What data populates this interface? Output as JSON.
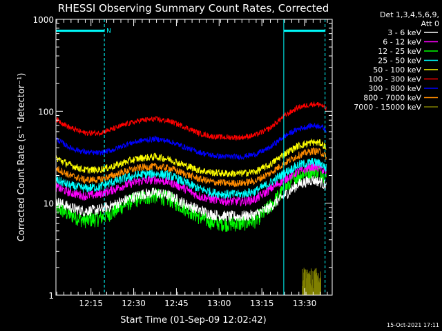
{
  "chart_data": {
    "type": "line",
    "title": "RHESSI Observing Summary Count Rates, Corrected",
    "xlabel": "Start Time (01-Sep-09 12:02:42)",
    "ylabel": "Corrected Count Rate (s⁻¹ detector⁻¹)",
    "y_scale": "log",
    "ylim": [
      1,
      1000
    ],
    "xlim_minutes": [
      0,
      97
    ],
    "x_ticks": [
      {
        "label": "12:15",
        "minute": 12.3
      },
      {
        "label": "12:30",
        "minute": 27.3
      },
      {
        "label": "12:45",
        "minute": 42.3
      },
      {
        "label": "13:00",
        "minute": 57.3
      },
      {
        "label": "13:15",
        "minute": 72.3
      },
      {
        "label": "13:30",
        "minute": 87.3
      }
    ],
    "y_ticks": [
      {
        "label": "1",
        "value": 1
      },
      {
        "label": "10",
        "value": 10
      },
      {
        "label": "100",
        "value": 100
      },
      {
        "label": "1000",
        "value": 1000
      }
    ],
    "legend_header": [
      "Det 1,3,4,5,6,9,",
      "Att 0"
    ],
    "legend_placement": "right",
    "x_sample_minutes": [
      0,
      5,
      10,
      15,
      20,
      25,
      30,
      35,
      40,
      45,
      50,
      55,
      60,
      65,
      70,
      75,
      80,
      85,
      90,
      93,
      95
    ],
    "series": [
      {
        "name": "3 - 6 keV",
        "color": "#ffffff",
        "noise": 0.06,
        "values": [
          10.5,
          9,
          8.2,
          8.5,
          9.5,
          11,
          12.5,
          13,
          12,
          10,
          8.5,
          7.5,
          7.2,
          7.2,
          7.5,
          9,
          12,
          16,
          18,
          17,
          15
        ]
      },
      {
        "name": "6 - 12 keV",
        "color": "#ff00ff",
        "noise": 0.05,
        "values": [
          15,
          13,
          12,
          12.5,
          14,
          16,
          17.5,
          18,
          17,
          14.5,
          12,
          11,
          10.5,
          10.5,
          11,
          14,
          18,
          22,
          25,
          24,
          21
        ]
      },
      {
        "name": "12 - 25 keV",
        "color": "#00ff00",
        "noise": 0.09,
        "values": [
          9,
          7.5,
          6.5,
          6.8,
          8,
          10,
          11.5,
          12,
          11,
          9,
          7.2,
          6.2,
          6,
          6,
          6.5,
          9,
          14,
          20,
          23,
          22,
          19
        ]
      },
      {
        "name": "25 - 50 keV",
        "color": "#00ffff",
        "noise": 0.05,
        "values": [
          18,
          15.5,
          14.5,
          15,
          17,
          19,
          20.5,
          21,
          20,
          17,
          14.5,
          13,
          12.5,
          12.5,
          13.5,
          16.5,
          21,
          26,
          28,
          27,
          24
        ]
      },
      {
        "name": "50 - 100 keV",
        "color": "#ffff00",
        "noise": 0.04,
        "values": [
          31,
          26,
          23,
          23,
          25,
          28.5,
          31,
          32,
          30,
          26,
          23,
          21.5,
          21,
          21,
          22,
          26,
          34,
          42,
          46,
          45,
          40
        ]
      },
      {
        "name": "100 - 300 keV",
        "color": "#ff0000",
        "noise": 0.03,
        "values": [
          82,
          66,
          58,
          58,
          64,
          73,
          80,
          82,
          78,
          68,
          58,
          53,
          52,
          52,
          55,
          65,
          88,
          110,
          120,
          118,
          105
        ]
      },
      {
        "name": "300 - 800 keV",
        "color": "#0000ff",
        "noise": 0.03,
        "values": [
          50,
          40,
          36,
          35,
          38,
          44,
          48,
          50,
          47,
          41,
          36,
          33,
          32,
          32,
          34,
          40,
          53,
          64,
          70,
          69,
          62
        ]
      },
      {
        "name": "800 - 7000 keV",
        "color": "#ff8c00",
        "noise": 0.04,
        "values": [
          24,
          20,
          18,
          18,
          20,
          22.5,
          24.5,
          25,
          24,
          21,
          18.5,
          17,
          16.5,
          16.5,
          17.5,
          21,
          27,
          33,
          37,
          36,
          32
        ]
      },
      {
        "name": "7000 - 15000 keV",
        "color": "#808000",
        "noise": 0,
        "values": [
          1,
          1,
          1,
          1,
          1,
          1,
          1,
          1,
          1,
          1,
          1,
          1,
          1,
          1,
          1,
          1,
          1,
          1,
          1,
          1,
          1
        ]
      }
    ],
    "burst_series": {
      "name": "7000 - 15000 keV",
      "color": "#808000",
      "minute_range": [
        86.5,
        93
      ],
      "value_range": [
        1,
        2
      ]
    },
    "annotations": {
      "saa_bars": [
        {
          "color": "#00ffff",
          "from_minute": 0,
          "to_minute": 17,
          "level": 750,
          "label": "N"
        },
        {
          "color": "#00ffff",
          "from_minute": 80,
          "to_minute": 94.5,
          "level": 750
        }
      ],
      "night_solid_lines_minutes": [
        0,
        80
      ],
      "night_dashed_lines_minutes": [
        17,
        94.5
      ]
    }
  },
  "footer": {
    "timestamp": "15-Oct-2021 17:11"
  }
}
